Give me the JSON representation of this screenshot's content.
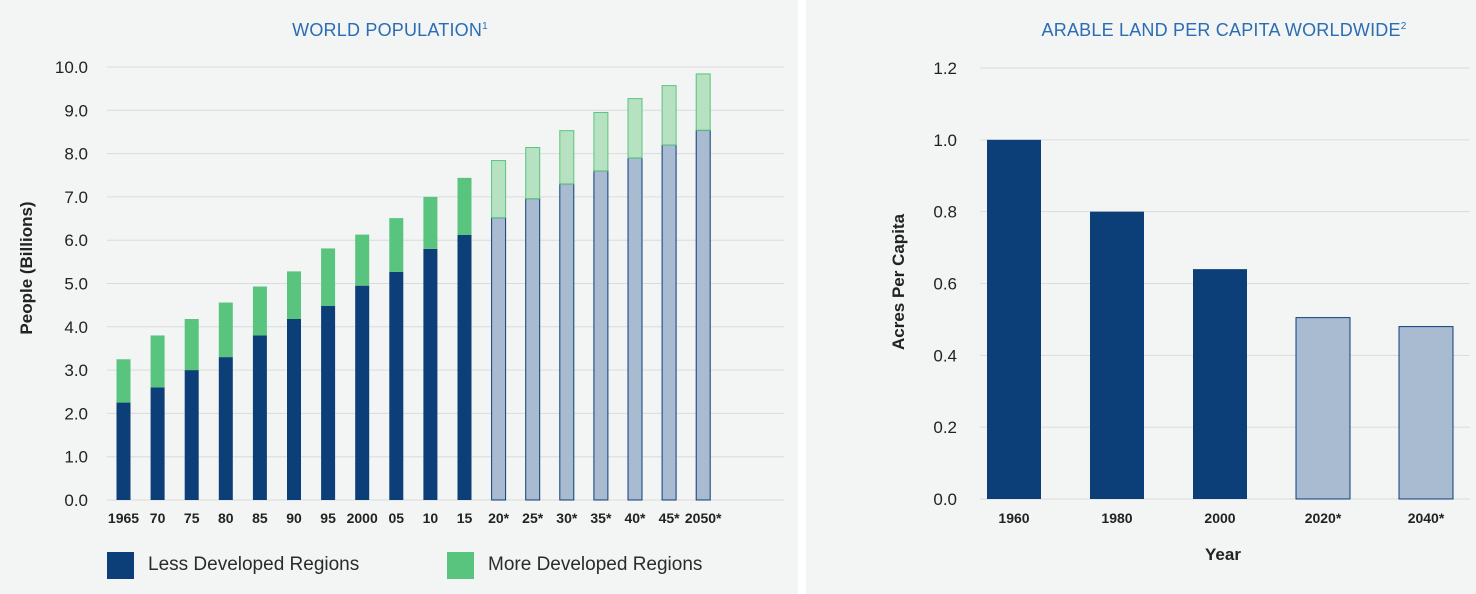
{
  "chart_data": [
    {
      "type": "bar",
      "stacked": true,
      "title": "WORLD POPULATION",
      "title_footnote": "1",
      "ylabel": "People (Billions)",
      "xlabel": "",
      "ylim": [
        0,
        10
      ],
      "yticks": [
        "0.0",
        "1.0",
        "2.0",
        "3.0",
        "4.0",
        "5.0",
        "6.0",
        "7.0",
        "8.0",
        "9.0",
        "10.0"
      ],
      "categories": [
        "1965",
        "70",
        "75",
        "80",
        "85",
        "90",
        "95",
        "2000",
        "05",
        "10",
        "15",
        "20*",
        "25*",
        "30*",
        "35*",
        "40*",
        "45*",
        "2050*"
      ],
      "projected_from_index": 11,
      "series": [
        {
          "name": "Less Developed Regions",
          "values": [
            2.25,
            2.6,
            3.0,
            3.3,
            3.8,
            4.18,
            4.48,
            4.95,
            5.27,
            5.8,
            6.12,
            6.52,
            6.96,
            7.3,
            7.6,
            7.9,
            8.2,
            8.54
          ]
        },
        {
          "name": "More Developed Regions",
          "values": [
            1.0,
            1.2,
            1.18,
            1.26,
            1.13,
            1.1,
            1.33,
            1.18,
            1.24,
            1.2,
            1.32,
            1.32,
            1.18,
            1.23,
            1.35,
            1.37,
            1.37,
            1.3
          ]
        }
      ],
      "grid": true,
      "legend": "bottom"
    },
    {
      "type": "bar",
      "title": "ARABLE LAND PER CAPITA WORLDWIDE",
      "title_footnote": "2",
      "ylabel": "Acres Per Capita",
      "xlabel": "Year",
      "ylim": [
        0,
        1.2
      ],
      "yticks": [
        "0.0",
        "0.2",
        "0.4",
        "0.6",
        "0.8",
        "1.0",
        "1.2"
      ],
      "categories": [
        "1960",
        "1980",
        "2000",
        "2020*",
        "2040*"
      ],
      "values": [
        1.0,
        0.8,
        0.64,
        0.505,
        0.48
      ],
      "projected_from_index": 3,
      "grid": true
    }
  ],
  "colors": {
    "less_developed": "#0c3e78",
    "less_developed_projected": "#a9bbd0",
    "more_developed": "#59c47e",
    "more_developed_projected": "#b6e2c1",
    "title": "#2a6db5",
    "grid": "#dadcdc"
  },
  "legend": {
    "less_label": "Less Developed Regions",
    "more_label": "More Developed Regions"
  }
}
